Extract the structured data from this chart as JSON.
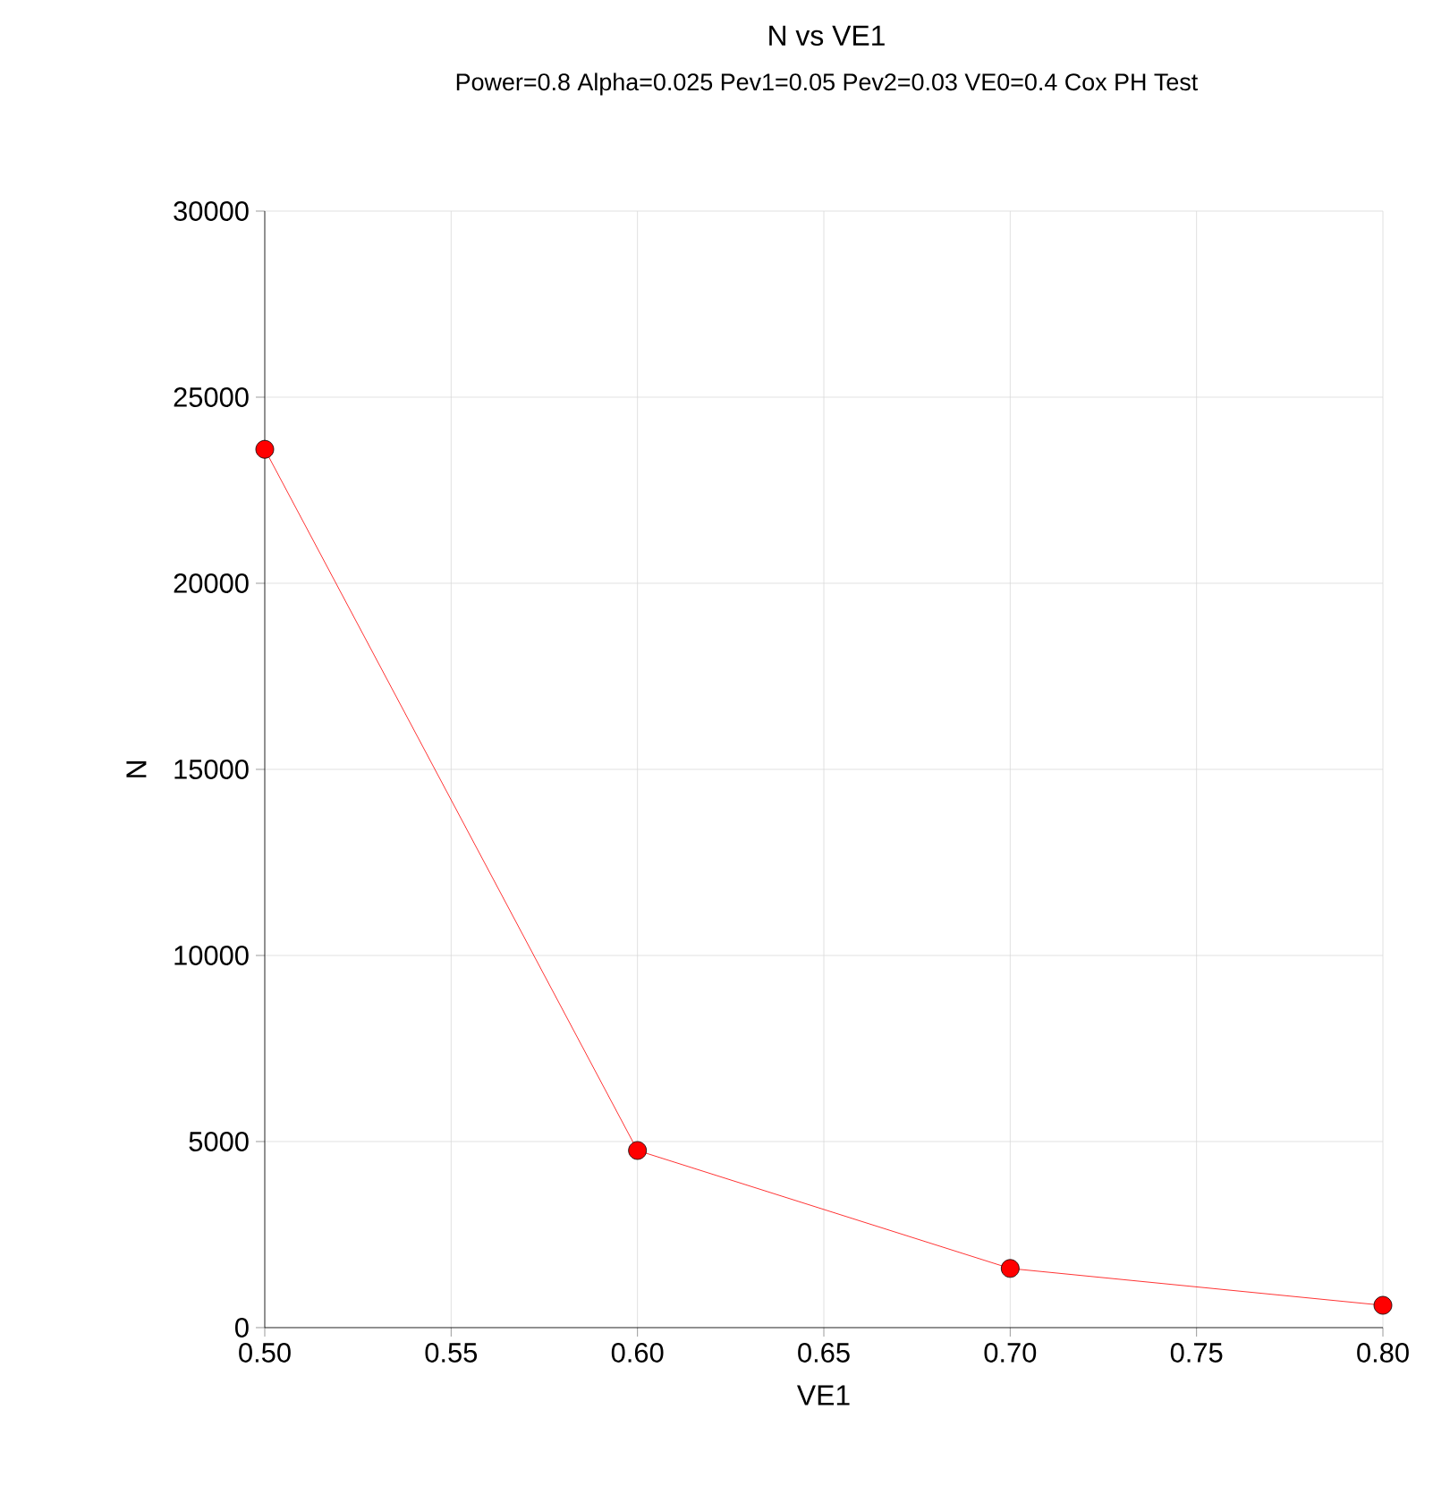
{
  "chart_data": {
    "type": "line",
    "title": "N vs VE1",
    "subtitle": "Power=0.8 Alpha=0.025 Pev1=0.05 Pev2=0.03 VE0=0.4 Cox PH Test",
    "xlabel": "VE1",
    "ylabel": "N",
    "x": [
      0.5,
      0.6,
      0.7,
      0.8
    ],
    "series": [
      {
        "color": "#ff0000",
        "values": [
          23600,
          4760,
          1590,
          600
        ]
      }
    ],
    "xlim": [
      0.5,
      0.8
    ],
    "xticks": [
      {
        "value": 0.5,
        "label": "0.50"
      },
      {
        "value": 0.55,
        "label": "0.55"
      },
      {
        "value": 0.6,
        "label": "0.60"
      },
      {
        "value": 0.65,
        "label": "0.65"
      },
      {
        "value": 0.7,
        "label": "0.70"
      },
      {
        "value": 0.75,
        "label": "0.75"
      },
      {
        "value": 0.8,
        "label": "0.80"
      }
    ],
    "ylim": [
      0,
      30000
    ],
    "yticks": [
      0,
      5000,
      10000,
      15000,
      20000,
      25000,
      30000
    ],
    "grid": true,
    "marker": "circle",
    "line_style": "solid"
  }
}
